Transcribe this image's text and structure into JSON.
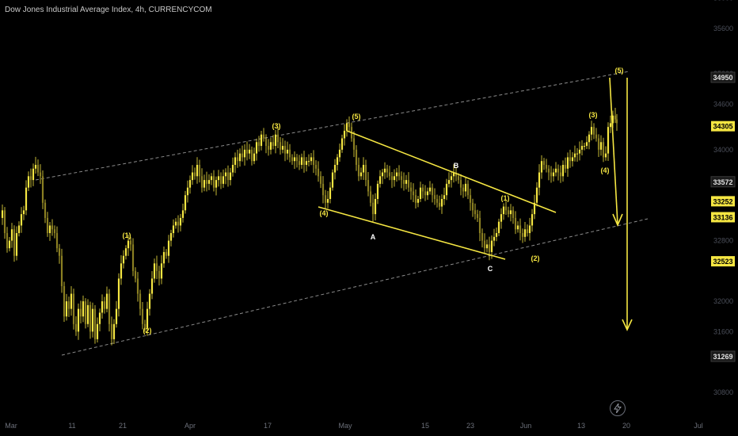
{
  "header": {
    "title": "Dow Jones Industrial Average Index, 4h, CURRENCYCOM"
  },
  "colors": {
    "accent": "#f5e642",
    "background": "#000000",
    "candle": "#f5e642",
    "candle_dark": "#8a7f22",
    "channel": "#8a8a8a"
  },
  "chart_data": {
    "type": "candlestick",
    "title": "Dow Jones Industrial Average Index, 4h, CURRENCYCOM",
    "x_ticks": [
      "Mar",
      "11",
      "21",
      "Apr",
      "17",
      "May",
      "15",
      "23",
      "Jun",
      "13",
      "20",
      "Jul"
    ],
    "y_ticks": [
      30800,
      31600,
      32000,
      32800,
      33600,
      34000,
      34600,
      35000,
      35600,
      36000
    ],
    "price_tags": [
      {
        "value": "34950",
        "style": "outline"
      },
      {
        "value": "34305",
        "style": "yellow"
      },
      {
        "value": "33572",
        "style": "outline"
      },
      {
        "value": "33252",
        "style": "yellow"
      },
      {
        "value": "33136",
        "style": "yellow"
      },
      {
        "value": "32523",
        "style": "yellow"
      },
      {
        "value": "31269",
        "style": "outline"
      }
    ],
    "price_path": [
      [
        0,
        33100
      ],
      [
        3,
        33200
      ],
      [
        6,
        32900
      ],
      [
        9,
        32700
      ],
      [
        12,
        32800
      ],
      [
        15,
        32950
      ],
      [
        18,
        32600
      ],
      [
        21,
        32900
      ],
      [
        24,
        33000
      ],
      [
        27,
        33150
      ],
      [
        30,
        33200
      ],
      [
        33,
        33500
      ],
      [
        36,
        33650
      ],
      [
        39,
        33600
      ],
      [
        42,
        33750
      ],
      [
        45,
        33800
      ],
      [
        48,
        33700
      ],
      [
        51,
        33650
      ],
      [
        54,
        33300
      ],
      [
        57,
        33100
      ],
      [
        60,
        32900
      ],
      [
        63,
        33000
      ],
      [
        66,
        32950
      ],
      [
        69,
        32900
      ],
      [
        72,
        32700
      ],
      [
        75,
        32600
      ],
      [
        78,
        32200
      ],
      [
        81,
        31800
      ],
      [
        84,
        32000
      ],
      [
        87,
        31900
      ],
      [
        90,
        32100
      ],
      [
        93,
        31700
      ],
      [
        96,
        31600
      ],
      [
        99,
        31900
      ],
      [
        102,
        31800
      ],
      [
        105,
        32000
      ],
      [
        108,
        31700
      ],
      [
        111,
        31950
      ],
      [
        114,
        31600
      ],
      [
        117,
        31900
      ],
      [
        120,
        31500
      ],
      [
        123,
        31700
      ],
      [
        126,
        31850
      ],
      [
        129,
        32000
      ],
      [
        132,
        31900
      ],
      [
        135,
        32100
      ],
      [
        138,
        31700
      ],
      [
        141,
        31500
      ],
      [
        144,
        31700
      ],
      [
        147,
        31900
      ],
      [
        150,
        32300
      ],
      [
        153,
        32500
      ],
      [
        156,
        32600
      ],
      [
        159,
        32700
      ],
      [
        162,
        32800
      ],
      [
        165,
        32750
      ],
      [
        168,
        32400
      ],
      [
        171,
        32300
      ],
      [
        174,
        32100
      ],
      [
        177,
        31900
      ],
      [
        180,
        31700
      ],
      [
        183,
        31650
      ],
      [
        186,
        31900
      ],
      [
        189,
        32100
      ],
      [
        192,
        32300
      ],
      [
        195,
        32500
      ],
      [
        198,
        32400
      ],
      [
        201,
        32300
      ],
      [
        204,
        32500
      ],
      [
        207,
        32650
      ],
      [
        210,
        32600
      ],
      [
        213,
        32800
      ],
      [
        216,
        32900
      ],
      [
        219,
        33000
      ],
      [
        222,
        33050
      ],
      [
        225,
        33000
      ],
      [
        228,
        33100
      ],
      [
        231,
        33200
      ],
      [
        234,
        33400
      ],
      [
        237,
        33500
      ],
      [
        240,
        33600
      ],
      [
        243,
        33700
      ],
      [
        246,
        33650
      ],
      [
        249,
        33800
      ],
      [
        252,
        33650
      ],
      [
        255,
        33500
      ],
      [
        258,
        33600
      ],
      [
        261,
        33550
      ],
      [
        264,
        33600
      ],
      [
        267,
        33650
      ],
      [
        270,
        33500
      ],
      [
        273,
        33600
      ],
      [
        276,
        33650
      ],
      [
        279,
        33550
      ],
      [
        282,
        33650
      ],
      [
        285,
        33700
      ],
      [
        288,
        33600
      ],
      [
        291,
        33700
      ],
      [
        294,
        33800
      ],
      [
        297,
        33900
      ],
      [
        300,
        33850
      ],
      [
        303,
        33950
      ],
      [
        306,
        33900
      ],
      [
        309,
        34000
      ],
      [
        312,
        33950
      ],
      [
        315,
        34000
      ],
      [
        318,
        33850
      ],
      [
        321,
        33950
      ],
      [
        324,
        34100
      ],
      [
        327,
        34050
      ],
      [
        330,
        34200
      ],
      [
        333,
        34150
      ],
      [
        336,
        34050
      ],
      [
        339,
        34000
      ],
      [
        342,
        34100
      ],
      [
        345,
        34050
      ],
      [
        348,
        34200
      ],
      [
        351,
        34100
      ],
      [
        354,
        34000
      ],
      [
        357,
        34050
      ],
      [
        360,
        33950
      ],
      [
        363,
        34000
      ],
      [
        366,
        33900
      ],
      [
        369,
        33850
      ],
      [
        372,
        33900
      ],
      [
        375,
        33850
      ],
      [
        378,
        33800
      ],
      [
        381,
        33900
      ],
      [
        384,
        33800
      ],
      [
        387,
        33850
      ],
      [
        390,
        33850
      ],
      [
        393,
        33900
      ],
      [
        396,
        33800
      ],
      [
        399,
        33750
      ],
      [
        402,
        33650
      ],
      [
        405,
        33550
      ],
      [
        408,
        33400
      ],
      [
        411,
        33300
      ],
      [
        414,
        33350
      ],
      [
        417,
        33500
      ],
      [
        420,
        33700
      ],
      [
        423,
        33800
      ],
      [
        426,
        33900
      ],
      [
        429,
        34000
      ],
      [
        432,
        34150
      ],
      [
        435,
        34250
      ],
      [
        438,
        34350
      ],
      [
        441,
        34300
      ],
      [
        444,
        34150
      ],
      [
        447,
        34000
      ],
      [
        450,
        33800
      ],
      [
        453,
        33650
      ],
      [
        456,
        33700
      ],
      [
        459,
        33800
      ],
      [
        462,
        33600
      ],
      [
        465,
        33450
      ],
      [
        468,
        33300
      ],
      [
        471,
        33150
      ],
      [
        474,
        33350
      ],
      [
        477,
        33550
      ],
      [
        480,
        33650
      ],
      [
        483,
        33700
      ],
      [
        486,
        33750
      ],
      [
        489,
        33700
      ],
      [
        492,
        33650
      ],
      [
        495,
        33600
      ],
      [
        498,
        33650
      ],
      [
        501,
        33700
      ],
      [
        504,
        33650
      ],
      [
        507,
        33600
      ],
      [
        510,
        33550
      ],
      [
        513,
        33600
      ],
      [
        516,
        33500
      ],
      [
        519,
        33450
      ],
      [
        522,
        33400
      ],
      [
        525,
        33300
      ],
      [
        528,
        33350
      ],
      [
        531,
        33500
      ],
      [
        534,
        33450
      ],
      [
        537,
        33400
      ],
      [
        540,
        33450
      ],
      [
        543,
        33500
      ],
      [
        546,
        33400
      ],
      [
        549,
        33350
      ],
      [
        552,
        33300
      ],
      [
        555,
        33250
      ],
      [
        558,
        33350
      ],
      [
        561,
        33400
      ],
      [
        564,
        33550
      ],
      [
        567,
        33600
      ],
      [
        570,
        33650
      ],
      [
        573,
        33700
      ],
      [
        576,
        33650
      ],
      [
        579,
        33600
      ],
      [
        582,
        33500
      ],
      [
        585,
        33450
      ],
      [
        588,
        33550
      ],
      [
        591,
        33400
      ],
      [
        594,
        33300
      ],
      [
        597,
        33200
      ],
      [
        600,
        33150
      ],
      [
        603,
        33100
      ],
      [
        606,
        32900
      ],
      [
        609,
        32800
      ],
      [
        612,
        32700
      ],
      [
        615,
        32750
      ],
      [
        618,
        32650
      ],
      [
        621,
        32800
      ],
      [
        624,
        32850
      ],
      [
        627,
        32900
      ],
      [
        630,
        33050
      ],
      [
        633,
        33150
      ],
      [
        636,
        33250
      ],
      [
        639,
        33200
      ],
      [
        642,
        33150
      ],
      [
        645,
        33200
      ],
      [
        648,
        33100
      ],
      [
        651,
        32950
      ],
      [
        654,
        33000
      ],
      [
        657,
        32900
      ],
      [
        660,
        32850
      ],
      [
        663,
        32950
      ],
      [
        666,
        32900
      ],
      [
        669,
        33000
      ],
      [
        672,
        33150
      ],
      [
        675,
        33300
      ],
      [
        678,
        33500
      ],
      [
        681,
        33700
      ],
      [
        684,
        33850
      ],
      [
        687,
        33800
      ],
      [
        690,
        33750
      ],
      [
        693,
        33700
      ],
      [
        696,
        33650
      ],
      [
        699,
        33700
      ],
      [
        702,
        33750
      ],
      [
        705,
        33700
      ],
      [
        708,
        33650
      ],
      [
        711,
        33800
      ],
      [
        714,
        33750
      ],
      [
        717,
        33900
      ],
      [
        720,
        33850
      ],
      [
        723,
        33900
      ],
      [
        726,
        33950
      ],
      [
        729,
        33950
      ],
      [
        732,
        34000
      ],
      [
        735,
        34050
      ],
      [
        738,
        34050
      ],
      [
        741,
        34100
      ],
      [
        744,
        34200
      ],
      [
        747,
        34300
      ],
      [
        750,
        34200
      ],
      [
        753,
        34150
      ],
      [
        756,
        34000
      ],
      [
        759,
        34100
      ],
      [
        762,
        33900
      ],
      [
        765,
        33950
      ],
      [
        768,
        34300
      ],
      [
        771,
        34350
      ],
      [
        774,
        34450
      ],
      [
        777,
        34400
      ],
      [
        779,
        34350
      ]
    ],
    "wave_labels_yellow": [
      "(1)",
      "(2)",
      "(3)",
      "(4)",
      "(5)",
      "(1)",
      "(2)",
      "(3)",
      "(4)",
      "(5)"
    ],
    "wave_labels_white": [
      "A",
      "B",
      "C"
    ]
  }
}
